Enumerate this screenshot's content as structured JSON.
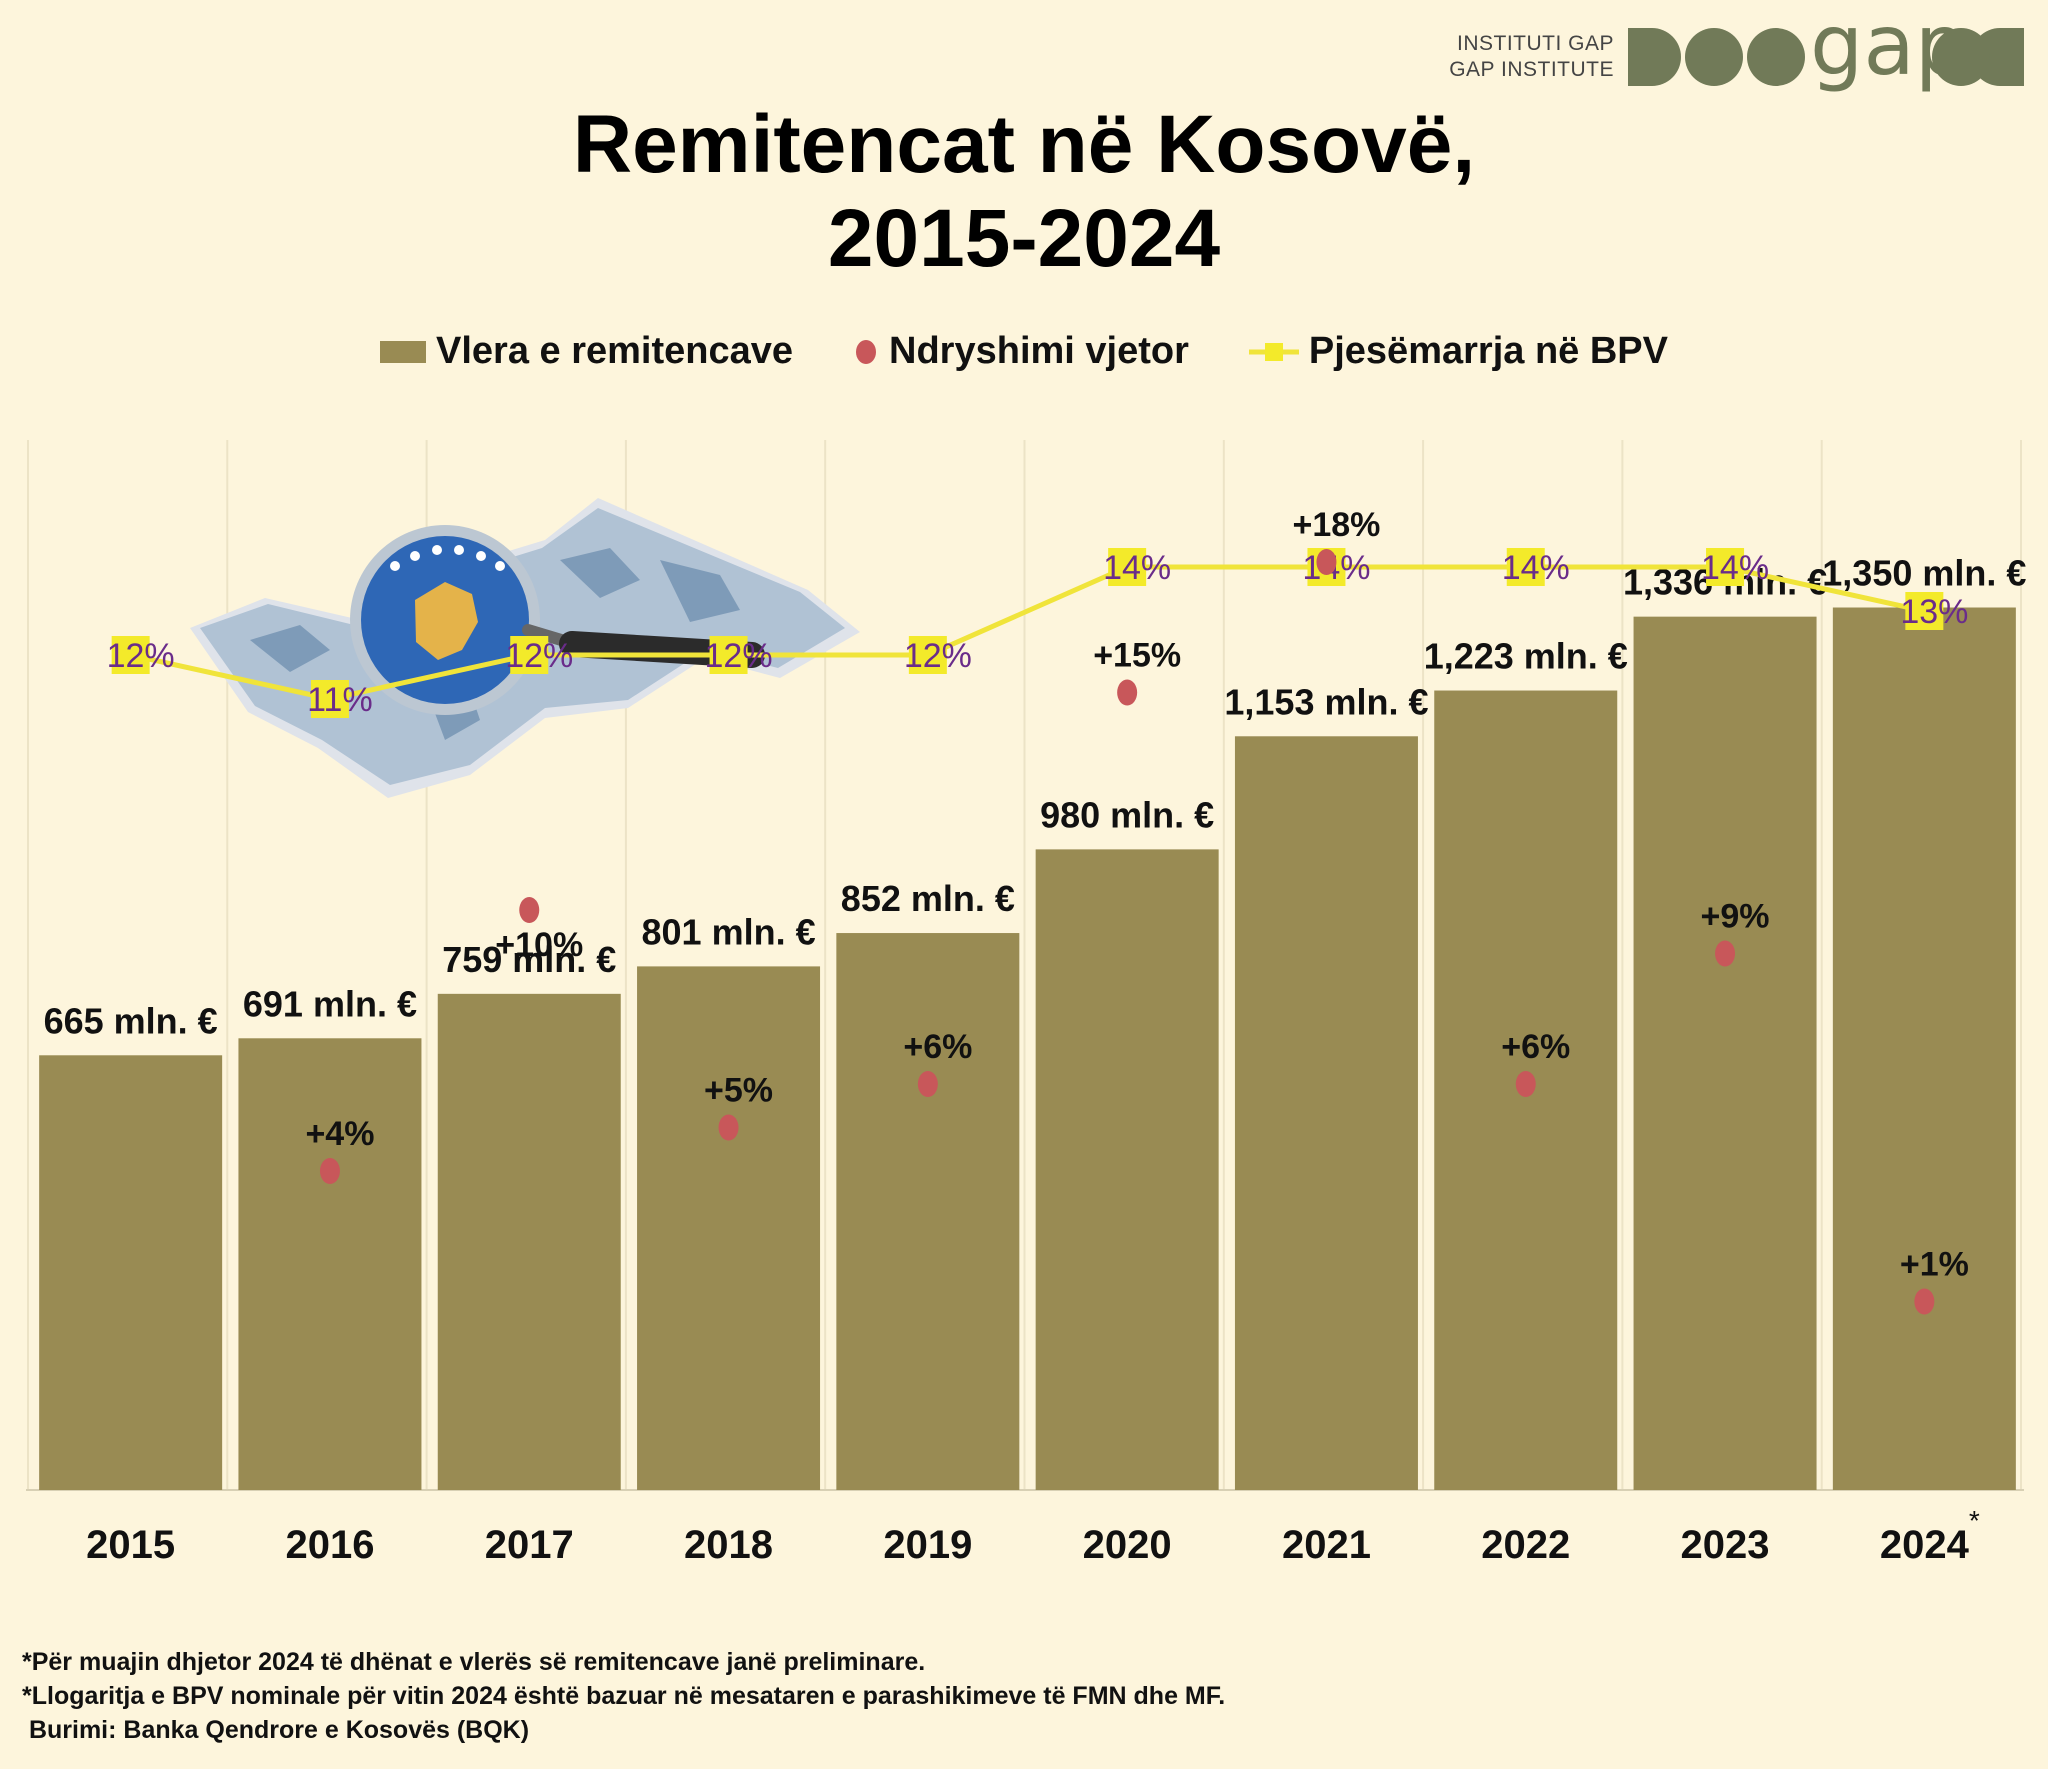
{
  "logo": {
    "line1": "INSTITUTI GAP",
    "line2": "GAP INSTITUTE",
    "word": "gap"
  },
  "title": {
    "line1": "Remitencat në Kosovë,",
    "line2": "2015-2024"
  },
  "legend": {
    "bars": "Vlera e remitencave",
    "dots": "Ndryshimi vjetor",
    "line": "Pjesëmarrja në BPV"
  },
  "colors": {
    "background": "#fdf5dc",
    "bar": "#998b53",
    "dot": "#c8575a",
    "line": "#f0e43a",
    "line_label": "#6a2c8a",
    "line_marker": "#f3ea2a"
  },
  "chart_data": {
    "type": "bar",
    "categories": [
      "2015",
      "2016",
      "2017",
      "2018",
      "2019",
      "2020",
      "2021",
      "2022",
      "2023",
      "2024"
    ],
    "category_marks": [
      "",
      "",
      "",
      "",
      "",
      "",
      "",
      "",
      "",
      "*"
    ],
    "series": [
      {
        "name": "Vlera e remitencave",
        "type": "bar",
        "values": [
          665,
          691,
          759,
          801,
          852,
          980,
          1153,
          1223,
          1336,
          1350
        ],
        "labels": [
          "665 mln. €",
          "691 mln. €",
          "759 mln. €",
          "801 mln. €",
          "852 mln. €",
          "980 mln. €",
          "1,153 mln. €",
          "1,223 mln. €",
          "1,336 mln. €",
          "1,350 mln. €"
        ]
      },
      {
        "name": "Ndryshimi vjetor",
        "type": "scatter",
        "values": [
          null,
          4,
          10,
          5,
          6,
          15,
          18,
          6,
          9,
          1
        ],
        "labels": [
          "",
          "+4%",
          "+10%",
          "+5%",
          "+6%",
          "+15%",
          "+18%",
          "+6%",
          "+9%",
          "+1%"
        ]
      },
      {
        "name": "Pjesëmarrja në BPV",
        "type": "line",
        "values": [
          12,
          11,
          12,
          12,
          12,
          14,
          14,
          14,
          14,
          13
        ],
        "labels": [
          "12%",
          "11%",
          "12%",
          "12%",
          "12%",
          "14%",
          "14%",
          "14%",
          "14%",
          "13%"
        ]
      }
    ],
    "xlabel": "",
    "ylabel": "",
    "legend_position": "top"
  },
  "notes": [
    "*Për muajin dhjetor 2024 të dhënat e vlerës së remitencave janë preliminare.",
    "*Llogaritja e BPV nominale për vitin 2024 është bazuar në mesataren e parashikimeve të FMN dhe MF.",
    " Burimi: Banka Qendrore e Kosovës (BQK)"
  ]
}
